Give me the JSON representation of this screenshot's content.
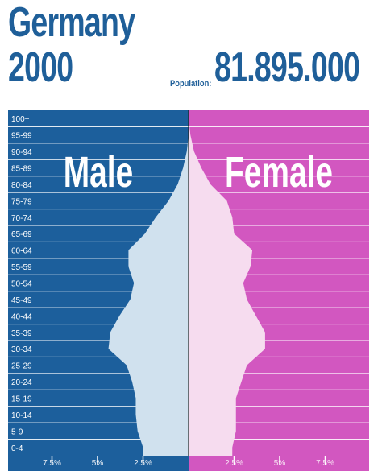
{
  "header": {
    "country": "Germany",
    "year": "2000",
    "population_label": "Population:",
    "population_value": "81.895.000"
  },
  "colors": {
    "male_bg": "#1c5f9c",
    "female_bg": "#d257c0",
    "male_fill": "#d0e1ee",
    "female_fill": "#f6dcef",
    "grid": "#ffffff",
    "center_line": "#222222"
  },
  "chart_data": {
    "type": "bar",
    "orientation": "horizontal-pyramid",
    "categories": [
      "0-4",
      "5-9",
      "10-14",
      "15-19",
      "20-24",
      "25-29",
      "30-34",
      "35-39",
      "40-44",
      "45-49",
      "50-54",
      "55-59",
      "60-64",
      "65-69",
      "70-74",
      "75-79",
      "80-84",
      "85-89",
      "90-94",
      "95-99",
      "100+"
    ],
    "series": [
      {
        "name": "Male",
        "values": [
          2.5,
          2.8,
          2.9,
          2.9,
          3.1,
          3.4,
          4.4,
          4.3,
          3.8,
          3.2,
          3.0,
          3.3,
          3.3,
          2.4,
          1.8,
          1.1,
          0.6,
          0.3,
          0.1,
          0.0,
          0.0
        ]
      },
      {
        "name": "Female",
        "values": [
          2.4,
          2.6,
          2.6,
          2.6,
          2.9,
          3.2,
          4.2,
          4.2,
          3.7,
          3.2,
          3.0,
          3.4,
          3.5,
          2.5,
          2.4,
          2.1,
          1.2,
          0.7,
          0.3,
          0.1,
          0.0
        ]
      }
    ],
    "xlim": [
      0,
      10
    ],
    "x_ticks": [
      "7.5%",
      "5%",
      "2.5%",
      "2.5%",
      "5%",
      "7.5%"
    ],
    "x_tick_values": [
      7.5,
      5,
      2.5,
      2.5,
      5,
      7.5
    ],
    "labels": {
      "male": "Male",
      "female": "Female"
    },
    "grid": true
  }
}
